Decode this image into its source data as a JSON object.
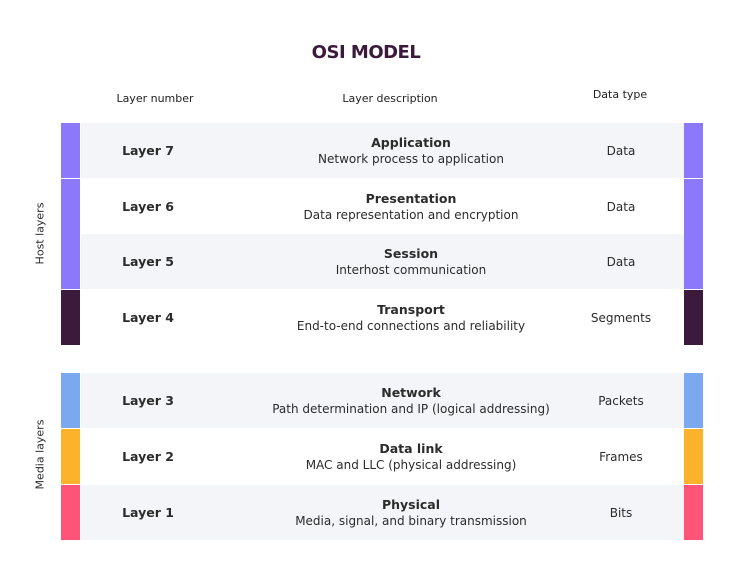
{
  "title": "OSI MODEL",
  "headers": {
    "number": "Layer number",
    "description": "Layer description",
    "datatype": "Data type"
  },
  "groups": {
    "host": "Host layers",
    "media": "Media layers"
  },
  "colors": {
    "application_layers": "#8b78fa",
    "transport": "#3b1a3b",
    "network": "#7aa9f0",
    "datalink": "#fdb22b",
    "physical": "#fd5478",
    "row_alt": "#f4f5f9"
  },
  "layers": [
    {
      "number": "Layer 7",
      "name": "Application",
      "description": "Network process to application",
      "datatype": "Data",
      "color": "#8b78fa"
    },
    {
      "number": "Layer 6",
      "name": "Presentation",
      "description": "Data representation and encryption",
      "datatype": "Data",
      "color": "#8b78fa"
    },
    {
      "number": "Layer 5",
      "name": "Session",
      "description": "Interhost communication",
      "datatype": "Data",
      "color": "#8b78fa"
    },
    {
      "number": "Layer 4",
      "name": "Transport",
      "description": "End-to-end connections and reliability",
      "datatype": "Segments",
      "color": "#3b1a3b"
    },
    {
      "number": "Layer 3",
      "name": "Network",
      "description": "Path determination and IP (logical addressing)",
      "datatype": "Packets",
      "color": "#7aa9f0"
    },
    {
      "number": "Layer 2",
      "name": "Data link",
      "description": "MAC and LLC (physical addressing)",
      "datatype": "Frames",
      "color": "#fdb22b"
    },
    {
      "number": "Layer 1",
      "name": "Physical",
      "description": "Media, signal, and binary transmission",
      "datatype": "Bits",
      "color": "#fd5478"
    }
  ]
}
